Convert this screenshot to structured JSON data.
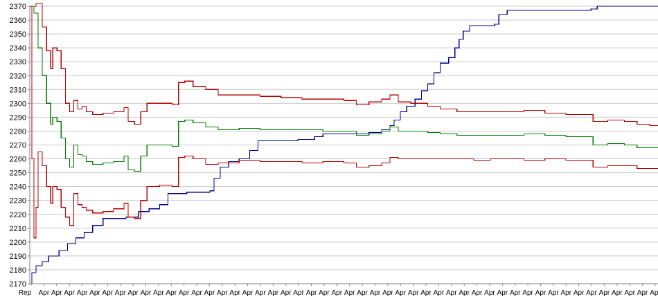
{
  "chart_data": {
    "type": "line",
    "title": "",
    "xlabel": "",
    "ylabel": "",
    "ylim": [
      2170,
      2370
    ],
    "yticks": [
      2170,
      2180,
      2190,
      2200,
      2210,
      2220,
      2230,
      2240,
      2250,
      2260,
      2270,
      2280,
      2290,
      2300,
      2310,
      2320,
      2330,
      2340,
      2350,
      2360,
      2370
    ],
    "grid": "horizontal",
    "legend": "none",
    "x_tick_count": 50,
    "x_tick_label": "Apr",
    "x_first_tick_label": "Rep",
    "xlim": [
      0,
      300
    ],
    "series": [
      {
        "color": "#00008b",
        "values": [
          [
            0,
            2170
          ],
          [
            1,
            2178
          ],
          [
            3,
            2183
          ],
          [
            6,
            2186
          ],
          [
            9,
            2190
          ],
          [
            14,
            2194
          ],
          [
            18,
            2199
          ],
          [
            22,
            2203
          ],
          [
            26,
            2207
          ],
          [
            30,
            2212
          ],
          [
            35,
            2217
          ],
          [
            46,
            2218
          ],
          [
            52,
            2222
          ],
          [
            57,
            2224
          ],
          [
            62,
            2227
          ],
          [
            66,
            2235
          ],
          [
            75,
            2236
          ],
          [
            86,
            2237
          ],
          [
            88,
            2246
          ],
          [
            91,
            2254
          ],
          [
            95,
            2258
          ],
          [
            100,
            2260
          ],
          [
            105,
            2266
          ],
          [
            109,
            2273
          ],
          [
            128,
            2274
          ],
          [
            136,
            2276
          ],
          [
            140,
            2278
          ],
          [
            162,
            2279
          ],
          [
            168,
            2281
          ],
          [
            172,
            2284
          ],
          [
            174,
            2288
          ],
          [
            177,
            2294
          ],
          [
            180,
            2298
          ],
          [
            184,
            2303
          ],
          [
            187,
            2309
          ],
          [
            190,
            2314
          ],
          [
            193,
            2322
          ],
          [
            196,
            2329
          ],
          [
            200,
            2333
          ],
          [
            203,
            2340
          ],
          [
            205,
            2346
          ],
          [
            207,
            2352
          ],
          [
            210,
            2356
          ],
          [
            222,
            2357
          ],
          [
            224,
            2364
          ],
          [
            228,
            2367
          ],
          [
            268,
            2368
          ],
          [
            271,
            2370
          ],
          [
            300,
            2370
          ]
        ]
      },
      {
        "color": "#b30000",
        "values": [
          [
            0,
            2370
          ],
          [
            3,
            2372
          ],
          [
            5,
            2372
          ],
          [
            6,
            2355
          ],
          [
            8,
            2338
          ],
          [
            10,
            2325
          ],
          [
            11,
            2340
          ],
          [
            13,
            2338
          ],
          [
            15,
            2325
          ],
          [
            17,
            2300
          ],
          [
            19,
            2294
          ],
          [
            21,
            2302
          ],
          [
            23,
            2296
          ],
          [
            25,
            2298
          ],
          [
            27,
            2294
          ],
          [
            30,
            2292
          ],
          [
            35,
            2293
          ],
          [
            40,
            2294
          ],
          [
            45,
            2297
          ],
          [
            47,
            2287
          ],
          [
            50,
            2285
          ],
          [
            53,
            2294
          ],
          [
            56,
            2300
          ],
          [
            62,
            2300
          ],
          [
            68,
            2299
          ],
          [
            71,
            2315
          ],
          [
            74,
            2316
          ],
          [
            78,
            2312
          ],
          [
            84,
            2310
          ],
          [
            90,
            2306
          ],
          [
            100,
            2306
          ],
          [
            110,
            2305
          ],
          [
            120,
            2304
          ],
          [
            130,
            2303
          ],
          [
            140,
            2303
          ],
          [
            150,
            2302
          ],
          [
            156,
            2299
          ],
          [
            162,
            2301
          ],
          [
            168,
            2303
          ],
          [
            172,
            2306
          ],
          [
            176,
            2301
          ],
          [
            182,
            2300
          ],
          [
            190,
            2298
          ],
          [
            196,
            2296
          ],
          [
            204,
            2294
          ],
          [
            212,
            2294
          ],
          [
            220,
            2294
          ],
          [
            236,
            2295
          ],
          [
            246,
            2293
          ],
          [
            256,
            2292
          ],
          [
            266,
            2292
          ],
          [
            269,
            2287
          ],
          [
            276,
            2288
          ],
          [
            284,
            2287
          ],
          [
            290,
            2285
          ],
          [
            296,
            2284
          ],
          [
            300,
            2284
          ]
        ]
      },
      {
        "color": "#007a00",
        "values": [
          [
            0,
            2370
          ],
          [
            2,
            2365
          ],
          [
            4,
            2340
          ],
          [
            6,
            2320
          ],
          [
            8,
            2300
          ],
          [
            10,
            2285
          ],
          [
            11,
            2290
          ],
          [
            13,
            2287
          ],
          [
            15,
            2275
          ],
          [
            17,
            2260
          ],
          [
            19,
            2254
          ],
          [
            21,
            2270
          ],
          [
            23,
            2263
          ],
          [
            25,
            2262
          ],
          [
            27,
            2258
          ],
          [
            30,
            2256
          ],
          [
            35,
            2257
          ],
          [
            40,
            2258
          ],
          [
            45,
            2262
          ],
          [
            47,
            2252
          ],
          [
            50,
            2251
          ],
          [
            53,
            2262
          ],
          [
            56,
            2270
          ],
          [
            62,
            2270
          ],
          [
            68,
            2269
          ],
          [
            71,
            2287
          ],
          [
            74,
            2288
          ],
          [
            78,
            2286
          ],
          [
            84,
            2283
          ],
          [
            90,
            2281
          ],
          [
            100,
            2282
          ],
          [
            110,
            2281
          ],
          [
            120,
            2281
          ],
          [
            130,
            2281
          ],
          [
            140,
            2280
          ],
          [
            150,
            2280
          ],
          [
            156,
            2277
          ],
          [
            162,
            2278
          ],
          [
            168,
            2280
          ],
          [
            172,
            2283
          ],
          [
            176,
            2280
          ],
          [
            182,
            2280
          ],
          [
            190,
            2279
          ],
          [
            196,
            2278
          ],
          [
            204,
            2277
          ],
          [
            212,
            2277
          ],
          [
            220,
            2277
          ],
          [
            236,
            2278
          ],
          [
            246,
            2277
          ],
          [
            256,
            2276
          ],
          [
            266,
            2276
          ],
          [
            269,
            2270
          ],
          [
            276,
            2271
          ],
          [
            284,
            2270
          ],
          [
            290,
            2268
          ],
          [
            296,
            2268
          ],
          [
            300,
            2268
          ]
        ]
      },
      {
        "color": "#b30000",
        "values": [
          [
            0,
            2370
          ],
          [
            1,
            2260
          ],
          [
            2,
            2203
          ],
          [
            3,
            2225
          ],
          [
            4,
            2265
          ],
          [
            6,
            2255
          ],
          [
            8,
            2240
          ],
          [
            10,
            2228
          ],
          [
            11,
            2240
          ],
          [
            13,
            2238
          ],
          [
            15,
            2225
          ],
          [
            17,
            2218
          ],
          [
            19,
            2212
          ],
          [
            21,
            2235
          ],
          [
            23,
            2227
          ],
          [
            25,
            2225
          ],
          [
            27,
            2223
          ],
          [
            30,
            2221
          ],
          [
            35,
            2222
          ],
          [
            40,
            2224
          ],
          [
            45,
            2228
          ],
          [
            47,
            2218
          ],
          [
            50,
            2217
          ],
          [
            53,
            2230
          ],
          [
            56,
            2240
          ],
          [
            62,
            2241
          ],
          [
            68,
            2240
          ],
          [
            71,
            2261
          ],
          [
            74,
            2262
          ],
          [
            78,
            2260
          ],
          [
            84,
            2256
          ],
          [
            90,
            2257
          ],
          [
            100,
            2259
          ],
          [
            110,
            2258
          ],
          [
            120,
            2258
          ],
          [
            130,
            2257
          ],
          [
            140,
            2258
          ],
          [
            150,
            2257
          ],
          [
            156,
            2254
          ],
          [
            162,
            2255
          ],
          [
            168,
            2257
          ],
          [
            172,
            2261
          ],
          [
            176,
            2260
          ],
          [
            182,
            2260
          ],
          [
            190,
            2260
          ],
          [
            196,
            2260
          ],
          [
            204,
            2260
          ],
          [
            212,
            2259
          ],
          [
            220,
            2260
          ],
          [
            236,
            2259
          ],
          [
            246,
            2260
          ],
          [
            256,
            2259
          ],
          [
            266,
            2259
          ],
          [
            269,
            2254
          ],
          [
            276,
            2255
          ],
          [
            284,
            2255
          ],
          [
            290,
            2253
          ],
          [
            296,
            2253
          ],
          [
            300,
            2253
          ]
        ]
      }
    ]
  }
}
